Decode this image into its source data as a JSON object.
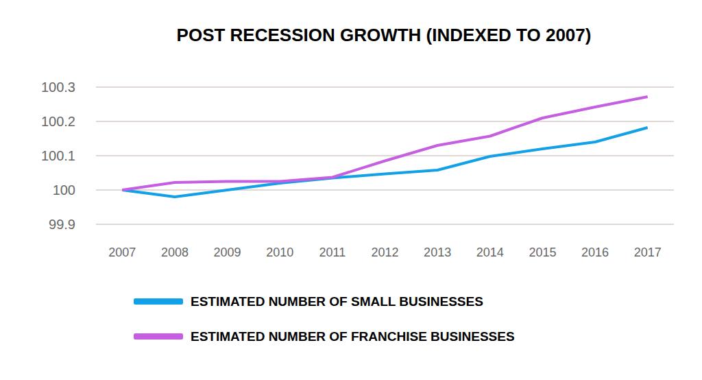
{
  "chart_data": {
    "type": "line",
    "title": "POST RECESSION GROWTH (INDEXED TO 2007)",
    "categories": [
      "2007",
      "2008",
      "2009",
      "2010",
      "2011",
      "2012",
      "2013",
      "2014",
      "2015",
      "2016",
      "2017"
    ],
    "series": [
      {
        "name": "ESTIMATED NUMBER OF SMALL BUSINESSES",
        "color": "#12a0e6",
        "values": [
          100,
          99.98,
          100.0,
          100.02,
          100.035,
          100.047,
          100.058,
          100.098,
          100.12,
          100.14,
          100.182
        ]
      },
      {
        "name": "ESTIMATED NUMBER OF FRANCHISE BUSINESSES",
        "color": "#c55ee0",
        "values": [
          100,
          100.022,
          100.025,
          100.025,
          100.037,
          100.085,
          100.13,
          100.157,
          100.21,
          100.242,
          100.272
        ]
      }
    ],
    "ylim": [
      99.9,
      100.3
    ],
    "yticks": [
      99.9,
      100,
      100.1,
      100.2,
      100.3
    ],
    "grid": true,
    "legend": "bottom",
    "marker": "none"
  }
}
